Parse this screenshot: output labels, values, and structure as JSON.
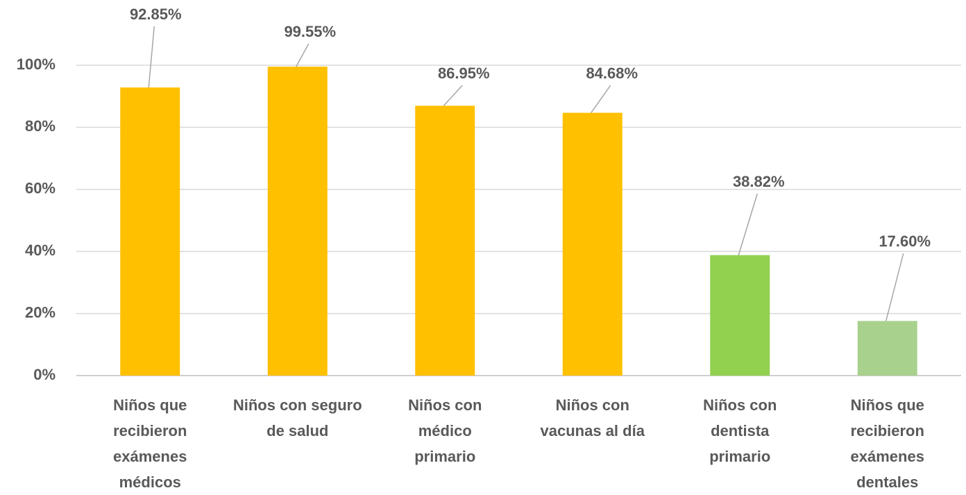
{
  "chart_data": {
    "type": "bar",
    "categories": [
      "Niños que recibieron exámenes médicos",
      "Niños con seguro de salud",
      "Niños con médico primario",
      "Niños con vacunas al día",
      "Niños con dentista primario",
      "Niños que recibieron exámenes dentales"
    ],
    "values": [
      92.85,
      99.55,
      86.95,
      84.68,
      38.82,
      17.6
    ],
    "value_labels": [
      "92.85%",
      "99.55%",
      "86.95%",
      "84.68%",
      "38.82%",
      "17.60%"
    ],
    "colors": [
      "#ffc000",
      "#ffc000",
      "#ffc000",
      "#ffc000",
      "#92d050",
      "#a9d18e"
    ],
    "ylim": [
      0,
      100
    ],
    "yticks": [
      {
        "value": 0,
        "label": "0%"
      },
      {
        "value": 20,
        "label": "20%"
      },
      {
        "value": 40,
        "label": "40%"
      },
      {
        "value": 60,
        "label": "60%"
      },
      {
        "value": 80,
        "label": "80%"
      },
      {
        "value": 100,
        "label": "100%"
      }
    ],
    "grid": true
  }
}
